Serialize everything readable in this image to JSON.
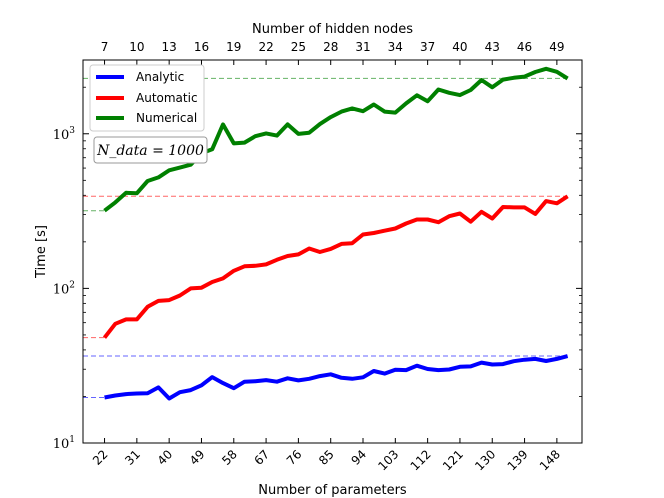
{
  "chart_data": {
    "type": "line",
    "y_scale": "log",
    "ylim": [
      10,
      3000
    ],
    "xlim": [
      16,
      155
    ],
    "xlabel": "Number of parameters",
    "ylabel": "Time [s]",
    "x2label": "Number of hidden nodes",
    "annotation": "N_data = 1000",
    "y_tick_labels": [
      {
        "value": 10,
        "base": "10",
        "exp": "1"
      },
      {
        "value": 100,
        "base": "10",
        "exp": "2"
      },
      {
        "value": 1000,
        "base": "10",
        "exp": "3"
      }
    ],
    "x_ticks": [
      22,
      31,
      40,
      49,
      58,
      67,
      76,
      85,
      94,
      103,
      112,
      121,
      130,
      139,
      148
    ],
    "x_tick_labels": [
      "22",
      "31",
      "40",
      "49",
      "58",
      "67",
      "76",
      "85",
      "94",
      "103",
      "112",
      "121",
      "130",
      "139",
      "148"
    ],
    "x2_ticks": [
      22,
      31,
      40,
      49,
      58,
      67,
      76,
      85,
      94,
      103,
      112,
      121,
      130,
      139,
      148
    ],
    "x2_tick_labels": [
      "7",
      "10",
      "13",
      "16",
      "19",
      "22",
      "25",
      "28",
      "31",
      "34",
      "37",
      "40",
      "43",
      "46",
      "49"
    ],
    "legend_position": "top-left",
    "x": [
      22,
      25,
      28,
      31,
      34,
      37,
      40,
      43,
      46,
      49,
      52,
      55,
      58,
      61,
      64,
      67,
      70,
      73,
      76,
      79,
      82,
      85,
      88,
      91,
      94,
      97,
      100,
      103,
      106,
      109,
      112,
      115,
      118,
      121,
      124,
      127,
      130,
      133,
      136,
      139,
      142,
      145,
      148,
      151
    ],
    "series": [
      {
        "name": "Analytic",
        "color": "#0000ff",
        "values": [
          19.7,
          20.3,
          20.7,
          20.9,
          21.0,
          22.9,
          19.4,
          21.3,
          22.0,
          23.6,
          26.7,
          24.4,
          22.6,
          24.9,
          25.1,
          25.5,
          24.9,
          26.2,
          25.4,
          26.0,
          27.1,
          27.8,
          26.4,
          26.0,
          26.6,
          29.2,
          28.1,
          29.8,
          29.6,
          31.6,
          30.1,
          29.6,
          29.9,
          31.1,
          31.3,
          33.1,
          32.2,
          32.4,
          33.8,
          34.6,
          35.0,
          33.9,
          35.0,
          36.5
        ]
      },
      {
        "name": "Automatic",
        "color": "#ff0000",
        "values": [
          48,
          59,
          63,
          63,
          76,
          83,
          84,
          90,
          100,
          101,
          110,
          116,
          130,
          139,
          140,
          143,
          153,
          162,
          166,
          181,
          172,
          180,
          194,
          196,
          223,
          228,
          236,
          244,
          263,
          279,
          279,
          268,
          293,
          305,
          270,
          313,
          283,
          336,
          334,
          334,
          303,
          367,
          355,
          394
        ]
      },
      {
        "name": "Numerical",
        "color": "#008000",
        "values": [
          318,
          360,
          415,
          412,
          495,
          522,
          580,
          604,
          631,
          749,
          793,
          1150,
          866,
          877,
          964,
          1006,
          973,
          1150,
          998,
          1016,
          1155,
          1281,
          1391,
          1459,
          1400,
          1547,
          1391,
          1370,
          1571,
          1774,
          1622,
          1934,
          1842,
          1780,
          1919,
          2226,
          1997,
          2239,
          2302,
          2343,
          2510,
          2631,
          2518,
          2279
        ]
      }
    ],
    "reference_lines": [
      {
        "series": "Numerical",
        "color": "#008000",
        "lines": [
          {
            "y": 2280,
            "x_from": 16,
            "x_to": 151
          },
          {
            "y": 318,
            "x_from": 16,
            "x_to": 22
          }
        ]
      },
      {
        "series": "Automatic",
        "color": "#ff0000",
        "lines": [
          {
            "y": 394,
            "x_from": 16,
            "x_to": 151
          },
          {
            "y": 48,
            "x_from": 16,
            "x_to": 22
          }
        ]
      },
      {
        "series": "Analytic",
        "color": "#0000ff",
        "lines": [
          {
            "y": 36.5,
            "x_from": 16,
            "x_to": 151
          },
          {
            "y": 19.7,
            "x_from": 16,
            "x_to": 22
          }
        ]
      }
    ]
  }
}
